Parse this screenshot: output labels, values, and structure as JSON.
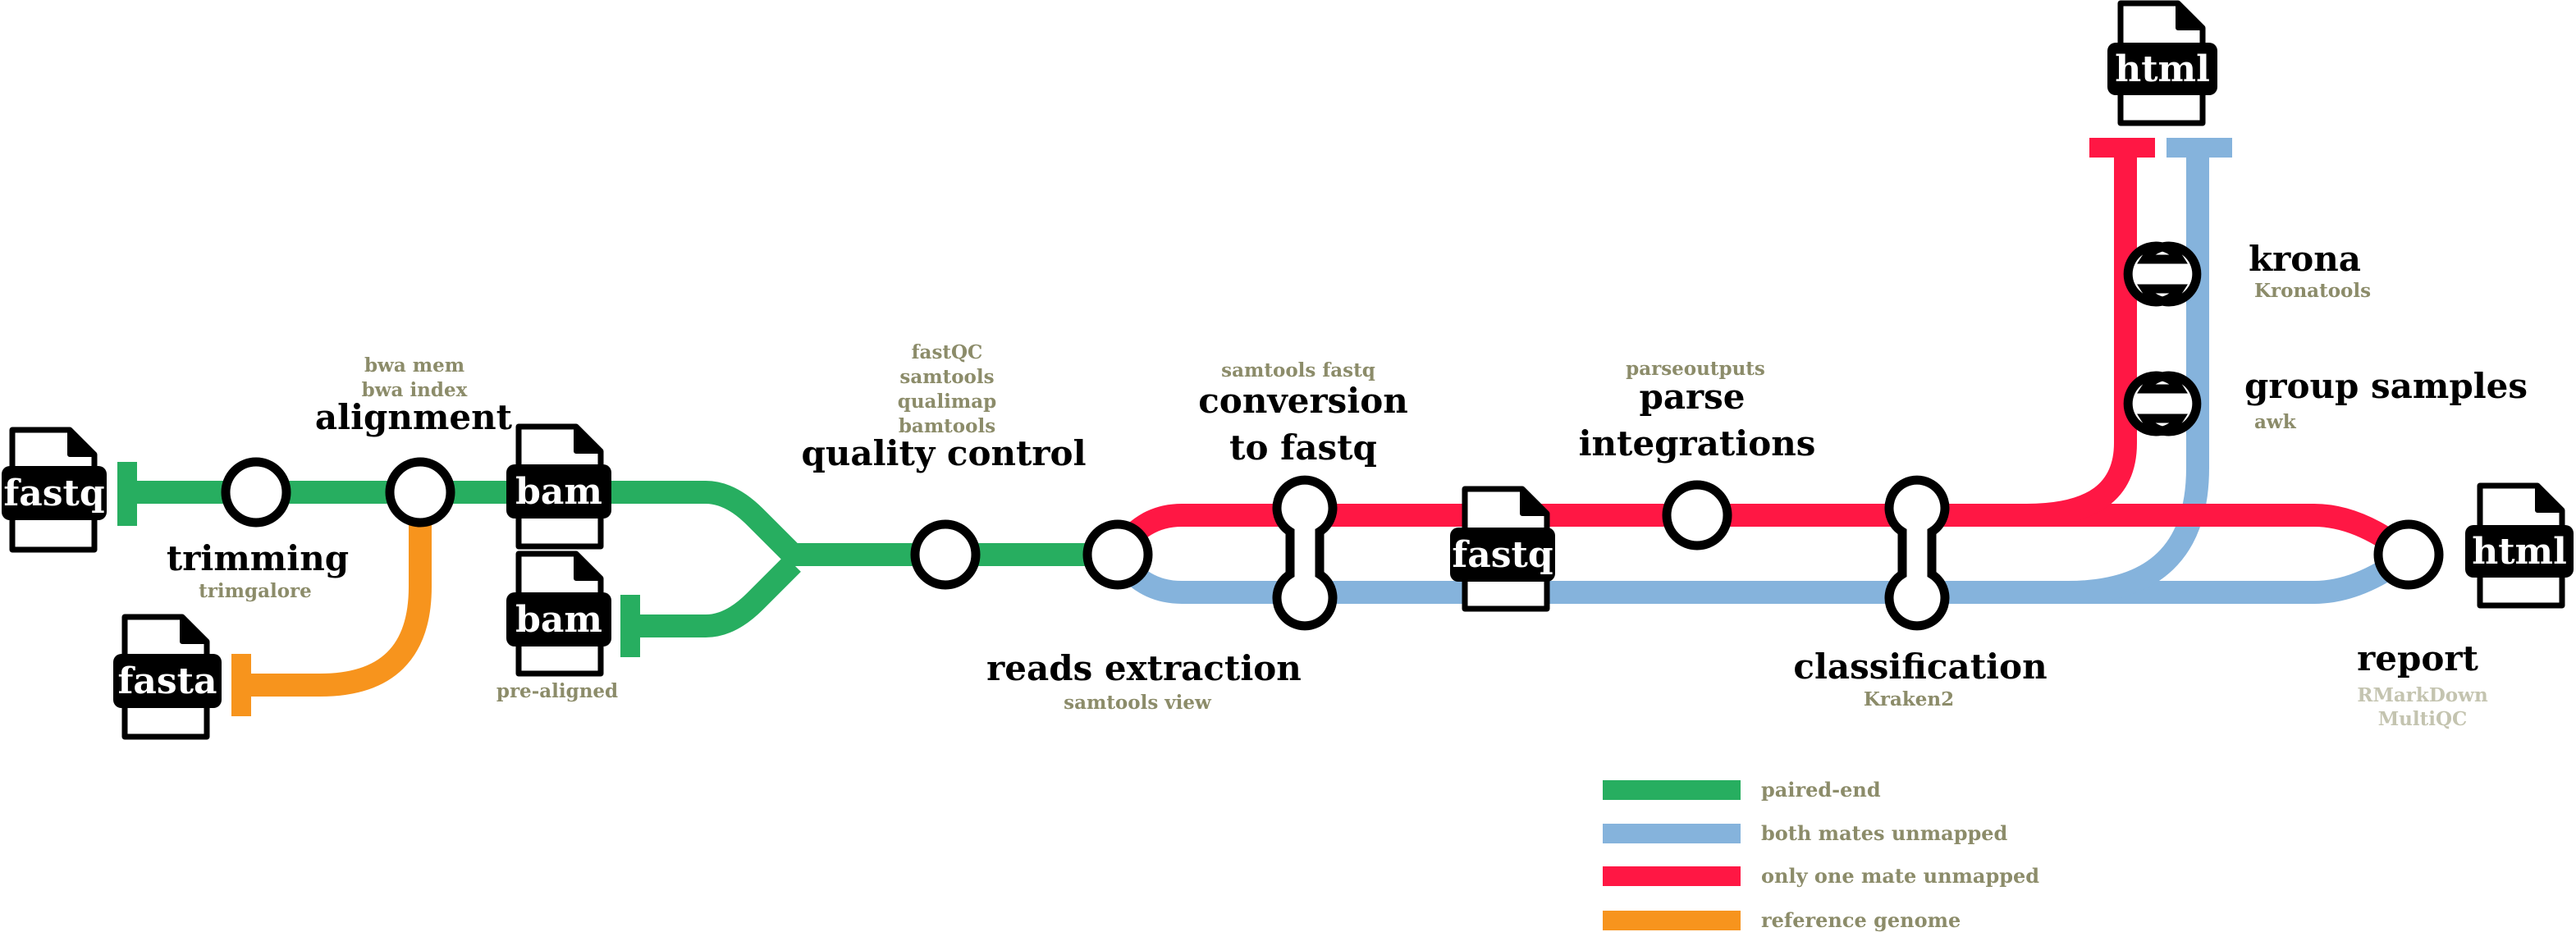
{
  "colors": {
    "paired_end": "#27ae60",
    "both_unmapped": "#85b3dc",
    "one_unmapped": "#ff1744",
    "reference": "#f7941d",
    "tool_text": "#8c8c6a",
    "tool_text_faded": "#c4c4b0"
  },
  "files": {
    "fastq_input": "fastq",
    "fasta_ref": "fasta",
    "bam_aligned": "bam",
    "bam_prealigned": "bam",
    "fastq_converted": "fastq",
    "html_krona": "html",
    "html_report": "html"
  },
  "stages": {
    "trimming": {
      "label": "trimming",
      "tools": [
        "trimgalore"
      ]
    },
    "alignment": {
      "label": "alignment",
      "tools": [
        "bwa mem",
        "bwa index"
      ]
    },
    "prealigned": {
      "label": "pre-aligned"
    },
    "quality_control": {
      "label": "quality control",
      "tools": [
        "fastQC",
        "samtools",
        "qualimap",
        "bamtools"
      ]
    },
    "reads_extraction": {
      "label": "reads extraction",
      "tools": [
        "samtools view"
      ]
    },
    "conversion": {
      "label_line1": "conversion",
      "label_line2": "to fastq",
      "tools": [
        "samtools fastq"
      ]
    },
    "parse": {
      "label_line1": "parse",
      "label_line2": "integrations",
      "tools": [
        "parseoutputs"
      ]
    },
    "classification": {
      "label": "classification",
      "tools": [
        "Kraken2"
      ]
    },
    "group_samples": {
      "label": "group samples",
      "tools": [
        "awk"
      ]
    },
    "krona": {
      "label": "krona",
      "tools": [
        "Kronatools"
      ]
    },
    "report": {
      "label": "report",
      "tools": [
        "RMarkDown",
        "MultiQC"
      ]
    }
  },
  "legend": [
    {
      "key": "paired_end",
      "label": "paired-end",
      "color": "#27ae60"
    },
    {
      "key": "both_unmapped",
      "label": "both mates unmapped",
      "color": "#85b3dc"
    },
    {
      "key": "one_unmapped",
      "label": "only one mate unmapped",
      "color": "#ff1744"
    },
    {
      "key": "reference",
      "label": "reference genome",
      "color": "#f7941d"
    }
  ]
}
